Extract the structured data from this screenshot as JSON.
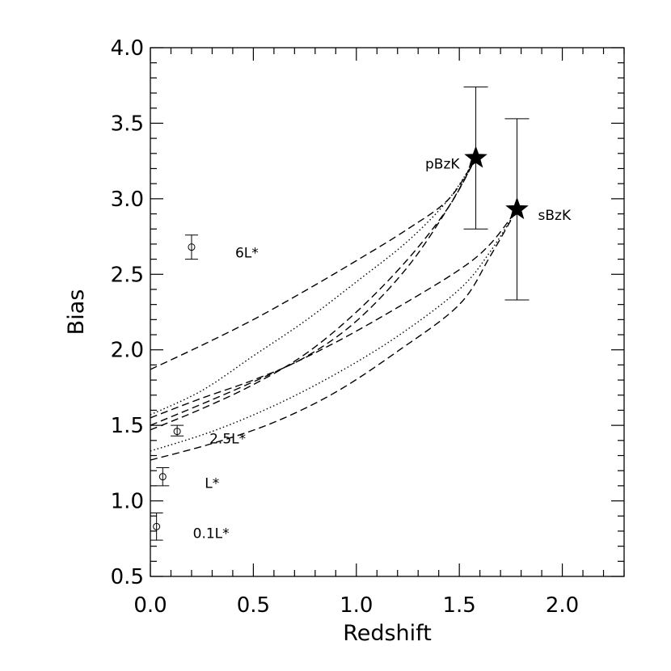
{
  "chart_data": {
    "type": "scatter",
    "xlabel": "Redshift",
    "ylabel": "Bias",
    "xlim": [
      0.0,
      2.3
    ],
    "ylim": [
      0.5,
      4.0
    ],
    "xticks": [
      "0.0",
      "0.5",
      "1.0",
      "1.5",
      "2.0"
    ],
    "yticks": [
      "0.5",
      "1.0",
      "1.5",
      "2.0",
      "2.5",
      "3.0",
      "3.5",
      "4.0"
    ],
    "grid": false,
    "points": [
      {
        "label": "0.1L*",
        "x": 0.03,
        "y": 0.83,
        "yerr_low": 0.74,
        "yerr_high": 0.92,
        "marker": "circle"
      },
      {
        "label": "L*",
        "x": 0.06,
        "y": 1.16,
        "yerr_low": 1.1,
        "yerr_high": 1.22,
        "marker": "circle"
      },
      {
        "label": "2.5L*",
        "x": 0.13,
        "y": 1.46,
        "yerr_low": 1.43,
        "yerr_high": 1.5,
        "marker": "circle"
      },
      {
        "label": "6L*",
        "x": 0.2,
        "y": 2.68,
        "yerr_low": 2.6,
        "yerr_high": 2.76,
        "marker": "circle"
      },
      {
        "label": "pBzK",
        "x": 1.58,
        "y": 3.27,
        "yerr_low": 2.8,
        "yerr_high": 3.74,
        "marker": "star"
      },
      {
        "label": "sBzK",
        "x": 1.78,
        "y": 2.93,
        "yerr_low": 2.33,
        "yerr_high": 3.53,
        "marker": "star"
      }
    ],
    "curves": [
      {
        "style": "dashed",
        "x": [
          0.0,
          0.25,
          0.5,
          0.75,
          1.0,
          1.25,
          1.45,
          1.58
        ],
        "y": [
          1.87,
          2.03,
          2.2,
          2.39,
          2.59,
          2.8,
          3.0,
          3.27
        ]
      },
      {
        "style": "dashed",
        "x": [
          0.0,
          0.25,
          0.5,
          0.75,
          1.0,
          1.25,
          1.45,
          1.58
        ],
        "y": [
          1.47,
          1.61,
          1.77,
          1.97,
          2.25,
          2.6,
          2.95,
          3.27
        ]
      },
      {
        "style": "dotted",
        "x": [
          0.0,
          0.25,
          0.5,
          0.75,
          1.0,
          1.25,
          1.45,
          1.58
        ],
        "y": [
          1.57,
          1.73,
          1.96,
          2.19,
          2.45,
          2.72,
          3.0,
          3.27
        ]
      },
      {
        "style": "dashed",
        "x": [
          0.0,
          0.25,
          0.5,
          0.75,
          1.0,
          1.25,
          1.45,
          1.58
        ],
        "y": [
          1.55,
          1.68,
          1.8,
          1.95,
          2.19,
          2.55,
          2.95,
          3.27
        ]
      },
      {
        "style": "dashed",
        "x": [
          0.0,
          0.3,
          0.6,
          0.9,
          1.2,
          1.5,
          1.65,
          1.78
        ],
        "y": [
          1.5,
          1.67,
          1.85,
          2.05,
          2.28,
          2.53,
          2.7,
          2.93
        ]
      },
      {
        "style": "dashed",
        "x": [
          0.0,
          0.3,
          0.6,
          0.9,
          1.2,
          1.5,
          1.65,
          1.78
        ],
        "y": [
          1.27,
          1.38,
          1.52,
          1.72,
          1.99,
          2.3,
          2.62,
          2.93
        ]
      },
      {
        "style": "dotted",
        "x": [
          0.0,
          0.3,
          0.6,
          0.9,
          1.2,
          1.5,
          1.65,
          1.78
        ],
        "y": [
          1.33,
          1.46,
          1.63,
          1.84,
          2.09,
          2.4,
          2.65,
          2.93
        ]
      }
    ]
  }
}
